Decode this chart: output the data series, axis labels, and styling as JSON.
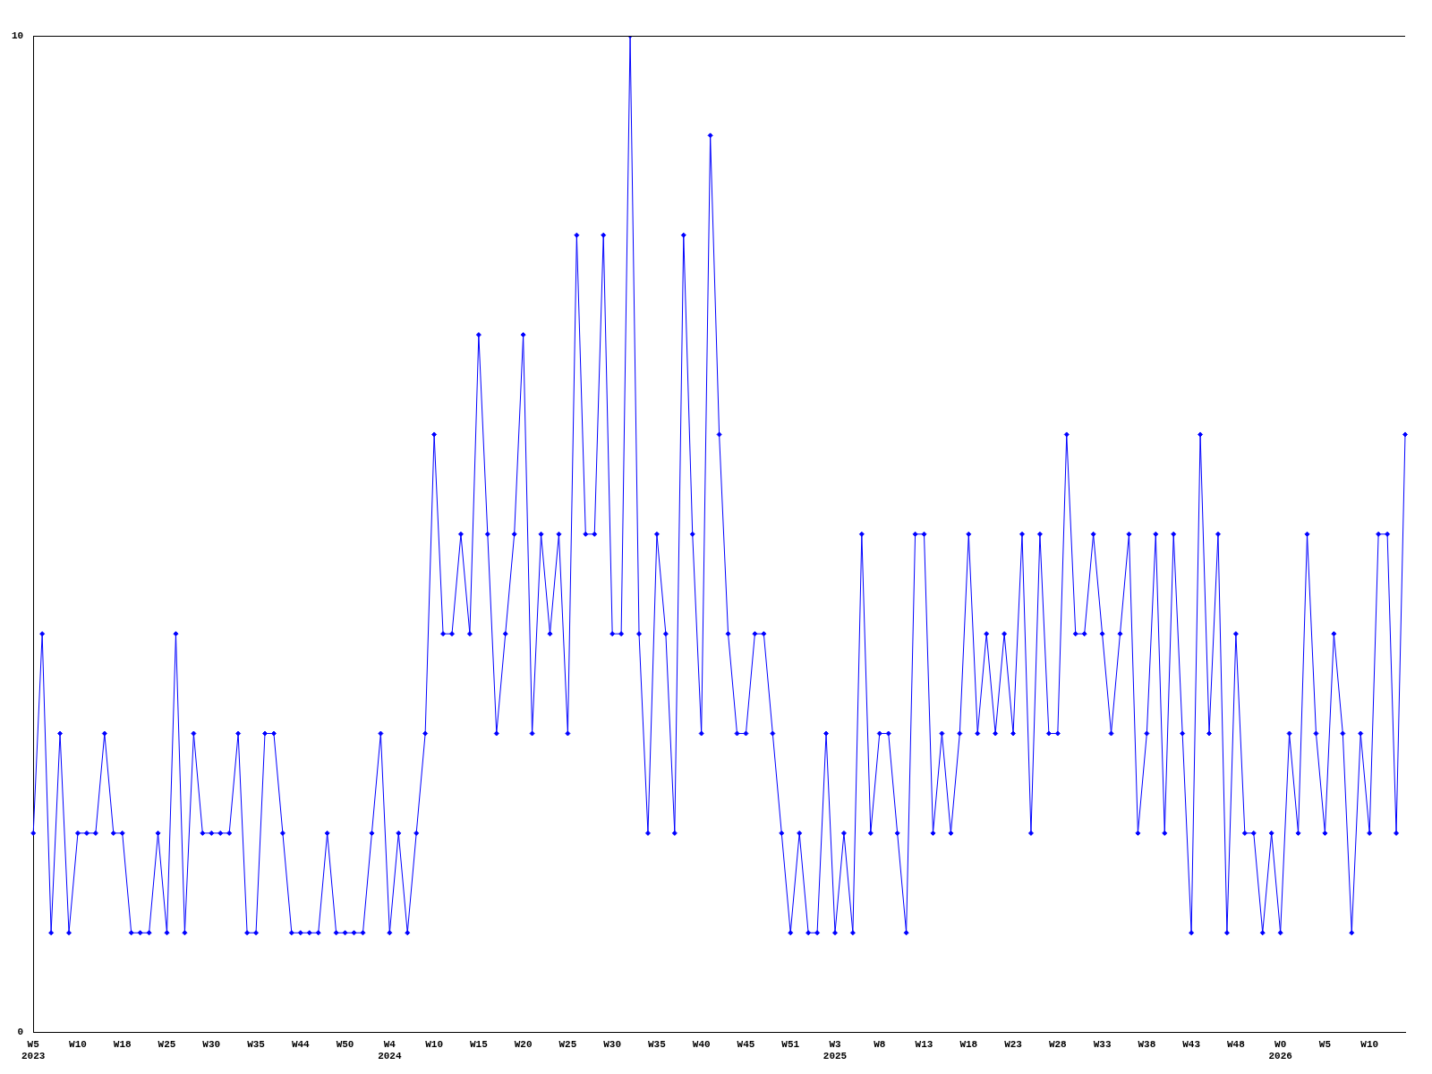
{
  "chart_data": {
    "type": "line",
    "categories": [
      "W5\n2023",
      null,
      null,
      null,
      null,
      "W10",
      null,
      null,
      null,
      null,
      "W18",
      null,
      null,
      null,
      null,
      "W25",
      null,
      null,
      null,
      null,
      "W30",
      null,
      null,
      null,
      null,
      "W35",
      null,
      null,
      null,
      null,
      "W44",
      null,
      null,
      null,
      null,
      "W50",
      null,
      null,
      null,
      null,
      "W4\n2024",
      null,
      null,
      null,
      null,
      "W10",
      null,
      null,
      null,
      null,
      "W15",
      null,
      null,
      null,
      null,
      "W20",
      null,
      null,
      null,
      null,
      "W25",
      null,
      null,
      null,
      null,
      "W30",
      null,
      null,
      null,
      null,
      "W35",
      null,
      null,
      null,
      null,
      "W40",
      null,
      null,
      null,
      null,
      "W45",
      null,
      null,
      null,
      null,
      "W51",
      null,
      null,
      null,
      null,
      "W3\n2025",
      null,
      null,
      null,
      null,
      "W8",
      null,
      null,
      null,
      null,
      "W13",
      null,
      null,
      null,
      null,
      "W18",
      null,
      null,
      null,
      null,
      "W23",
      null,
      null,
      null,
      null,
      "W28",
      null,
      null,
      null,
      null,
      "W33",
      null,
      null,
      null,
      null,
      "W38",
      null,
      null,
      null,
      null,
      "W43",
      null,
      null,
      null,
      null,
      "W48",
      null,
      null,
      null,
      null,
      "W0\n2026",
      null,
      null,
      null,
      null,
      "W5",
      null,
      null,
      null,
      null,
      "W10",
      null,
      null,
      null,
      null
    ],
    "series": [
      {
        "color": "#0000ff",
        "values": [
          2,
          4,
          1,
          3,
          1,
          2,
          2,
          2,
          3,
          2,
          2,
          1,
          1,
          1,
          2,
          1,
          4,
          1,
          3,
          2,
          2,
          2,
          2,
          3,
          1,
          1,
          3,
          3,
          2,
          1,
          1,
          1,
          1,
          2,
          1,
          1,
          1,
          1,
          2,
          3,
          1,
          2,
          1,
          2,
          3,
          6,
          4,
          4,
          5,
          4,
          7,
          5,
          3,
          4,
          5,
          7,
          3,
          5,
          4,
          5,
          3,
          8,
          5,
          5,
          8,
          4,
          4,
          10,
          4,
          2,
          5,
          4,
          2,
          8,
          5,
          3,
          9,
          6,
          4,
          3,
          3,
          4,
          4,
          3,
          2,
          1,
          2,
          1,
          1,
          3,
          1,
          2,
          1,
          5,
          2,
          3,
          3,
          2,
          1,
          5,
          5,
          2,
          3,
          2,
          3,
          5,
          3,
          4,
          3,
          4,
          3,
          5,
          2,
          5,
          3,
          3,
          6,
          4,
          4,
          5,
          4,
          3,
          4,
          5,
          2,
          3,
          5,
          2,
          5,
          3,
          1,
          6,
          3,
          5,
          1,
          4,
          2,
          2,
          1,
          2,
          1,
          3,
          2,
          5,
          3,
          2,
          4,
          3,
          1,
          3,
          2,
          5,
          5,
          2,
          6
        ]
      }
    ],
    "ylim": [
      0,
      10
    ],
    "yticks": [
      0,
      10
    ],
    "grid": false,
    "legend": false,
    "marker": "diamond",
    "line_style": "solid"
  }
}
